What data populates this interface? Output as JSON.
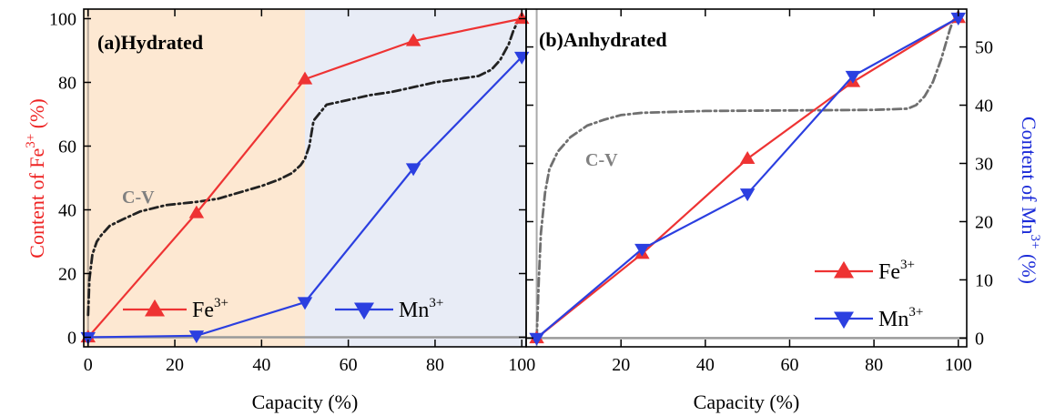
{
  "chart_data": [
    {
      "type": "line",
      "panel": "(a)Hydrated",
      "xlabel": "Capacity (%)",
      "ylabel_prefix": "Content of Fe",
      "ylabel_sup": "3+",
      "ylabel_suffix": " (%)",
      "xlim": [
        -1,
        101
      ],
      "ylim": [
        -3,
        103
      ],
      "xticks": [
        0,
        20,
        40,
        60,
        80,
        100
      ],
      "xtick_labels": [
        "0",
        "20",
        "40",
        "60",
        "80",
        "100"
      ],
      "yticks": [
        0,
        20,
        40,
        60,
        80,
        100
      ],
      "ytick_labels": [
        "0",
        "20",
        "40",
        "60",
        "80",
        "100"
      ],
      "shading": [
        {
          "from": 0,
          "to": 50,
          "color": "#fde8d2"
        },
        {
          "from": 50,
          "to": 100,
          "color": "#e8ecf6"
        }
      ],
      "series": [
        {
          "name": "Fe",
          "sup": "3+",
          "color": "#ee3333",
          "marker": "triangle-up",
          "x": [
            0,
            25,
            50,
            75,
            100
          ],
          "y": [
            0,
            39,
            81,
            93,
            100
          ]
        },
        {
          "name": "Mn",
          "sup": "3+",
          "color": "#2b3fe0",
          "marker": "triangle-down",
          "x": [
            0,
            25,
            50,
            75,
            100
          ],
          "y": [
            0,
            0.5,
            11,
            53,
            88
          ]
        }
      ],
      "cv_curve": {
        "label": "C-V",
        "color": "#222222",
        "x": [
          0,
          0.3,
          1,
          2,
          3,
          5,
          8,
          12,
          18,
          25,
          30,
          35,
          40,
          44,
          47,
          49,
          50,
          51,
          52,
          55,
          60,
          65,
          70,
          75,
          80,
          85,
          90,
          93,
          95,
          97,
          98,
          99,
          100
        ],
        "y": [
          7,
          18,
          26,
          30,
          32,
          35,
          37,
          39.5,
          41.5,
          42.5,
          43.5,
          45.5,
          47.5,
          49.5,
          51.5,
          54,
          56,
          60,
          68,
          73,
          74.5,
          76,
          77,
          78.5,
          80,
          81,
          82,
          84,
          87,
          92,
          96,
          99,
          100
        ]
      },
      "legend": {
        "position": "bottom"
      }
    },
    {
      "type": "line",
      "panel": "(b)Anhydrated",
      "xlabel": "Capacity (%)",
      "ylabel_prefix": "Content of Mn",
      "ylabel_sup": "3+",
      "ylabel_suffix": " (%)",
      "ylabel_side": "right",
      "xlim": [
        -2.5,
        102
      ],
      "ylim": [
        -1.5,
        56.5
      ],
      "xticks": [
        20,
        40,
        60,
        80,
        100
      ],
      "xtick_labels": [
        "20",
        "40",
        "60",
        "80",
        "100"
      ],
      "yticks": [
        0,
        10,
        20,
        30,
        40,
        50
      ],
      "ytick_labels": [
        "0",
        "10",
        "20",
        "30",
        "40",
        "50"
      ],
      "series": [
        {
          "name": "Fe",
          "sup": "3+",
          "color": "#ee3333",
          "marker": "triangle-up",
          "x": [
            0,
            25,
            50,
            75,
            100
          ],
          "y": [
            0,
            14.5,
            30.8,
            44,
            55
          ]
        },
        {
          "name": "Mn",
          "sup": "3+",
          "color": "#2b3fe0",
          "marker": "triangle-down",
          "x": [
            0,
            25,
            50,
            75,
            100
          ],
          "y": [
            0,
            15.3,
            24.8,
            45,
            55
          ]
        }
      ],
      "cv_curve": {
        "label": "C-V",
        "color": "#707070",
        "x": [
          0,
          0.5,
          1,
          2,
          3,
          5,
          8,
          12,
          16,
          20,
          25,
          40,
          60,
          80,
          88,
          90,
          92,
          94,
          96,
          98,
          99,
          100
        ],
        "y": [
          0,
          10,
          18,
          25,
          29,
          32,
          34.5,
          36.5,
          37.5,
          38.3,
          38.7,
          39,
          39.1,
          39.2,
          39.4,
          40,
          41.5,
          44,
          48,
          53,
          55,
          56
        ]
      },
      "legend": {
        "position": "bottom-right"
      }
    }
  ]
}
